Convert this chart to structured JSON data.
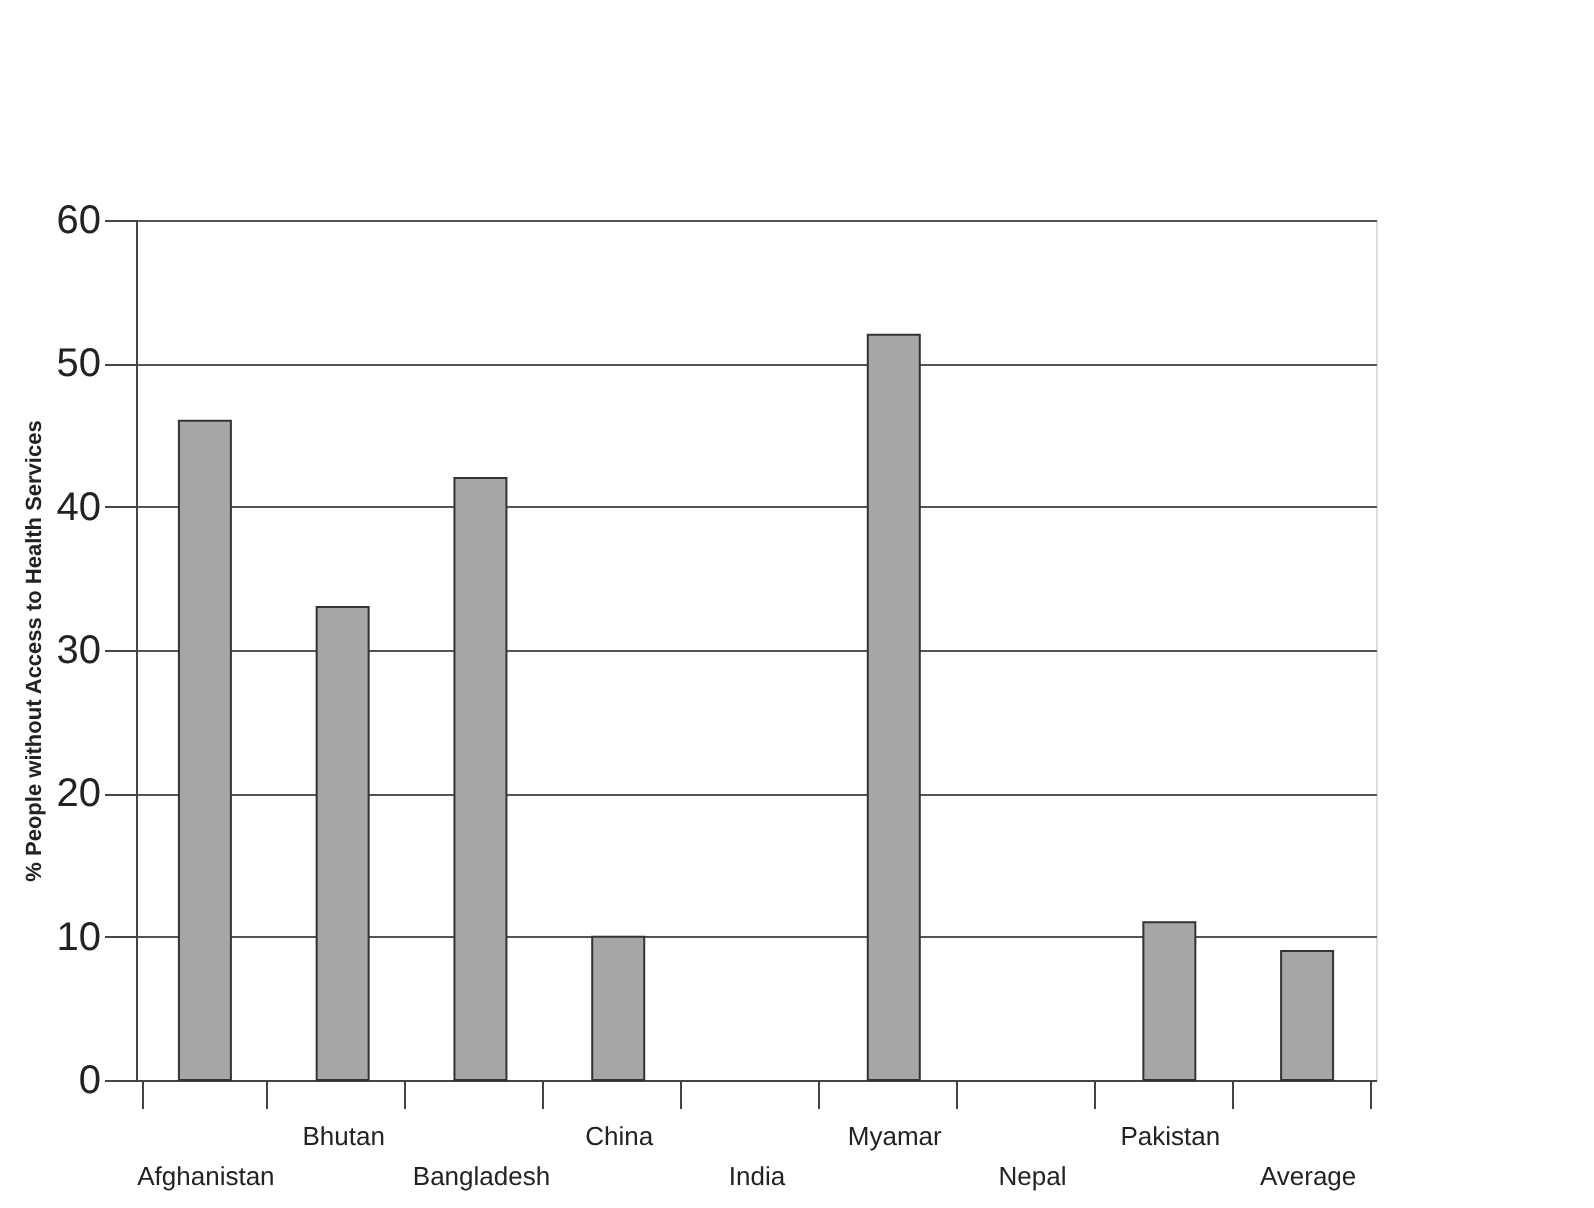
{
  "chart_data": {
    "type": "bar",
    "ylabel": "% People without Access to Health Services",
    "categories": [
      "Afghanistan",
      "Bhutan",
      "Bangladesh",
      "China",
      "India",
      "Myamar",
      "Nepal",
      "Pakistan",
      "Average"
    ],
    "values": [
      46,
      33,
      42,
      10,
      null,
      52,
      null,
      11,
      9
    ],
    "color": "#a6a6a6",
    "ylim": [
      0,
      60
    ],
    "yticks": [
      0,
      10,
      20,
      30,
      40,
      50,
      60
    ],
    "grid": "y"
  }
}
